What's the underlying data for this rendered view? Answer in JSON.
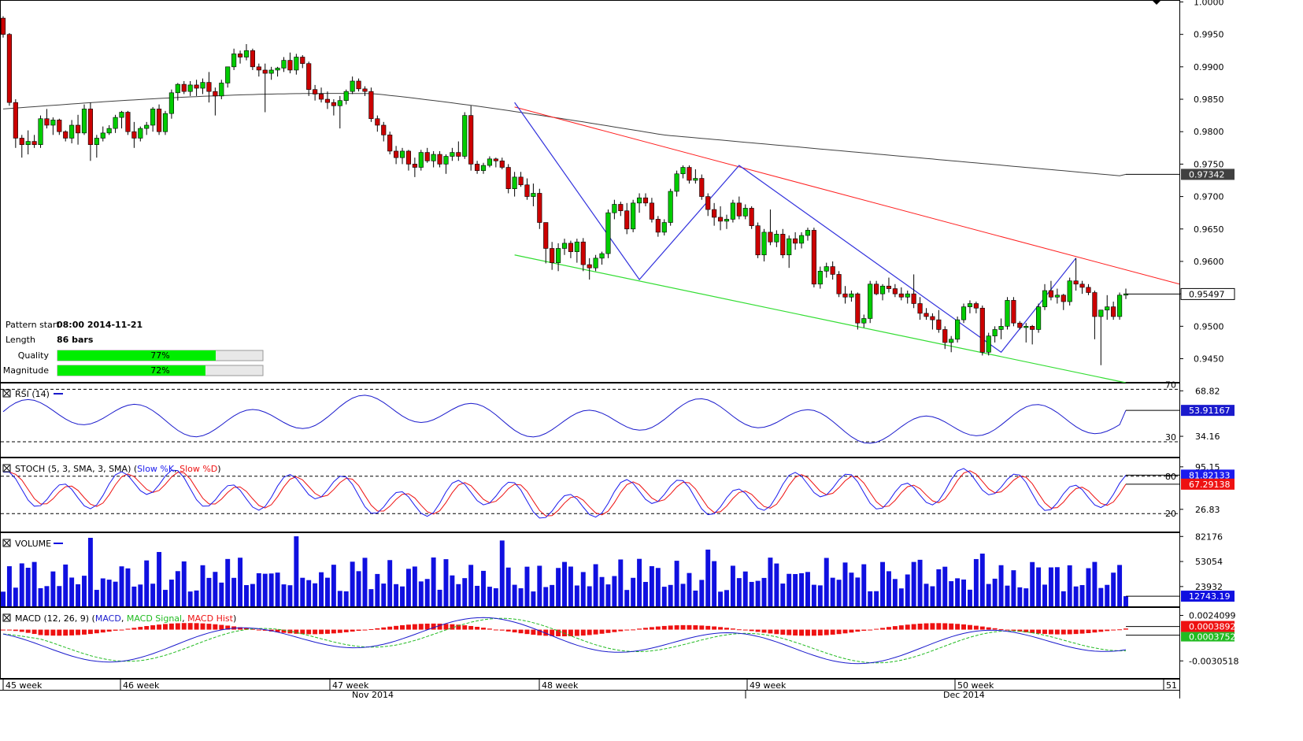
{
  "chart_data": {
    "type": "candlestick-pattern",
    "main": {
      "yticks": [
        1.0,
        0.995,
        0.99,
        0.985,
        0.98,
        0.975,
        0.97,
        0.965,
        0.96,
        0.955,
        0.95,
        0.945
      ],
      "ytick_labels": [
        "1.0000",
        "0.9950",
        "0.9900",
        "0.9850",
        "0.9800",
        "0.9750",
        "0.9700",
        "0.9650",
        "0.9600",
        "0.9550",
        "0.9500",
        "0.9450"
      ],
      "ylim": [
        0.9413,
        1.0003
      ],
      "ma_label": "0.97342",
      "last_price_label": "0.95497",
      "ma_value": 0.97342,
      "last_price": 0.95497,
      "candles_ohlc": [
        [
          0.9975,
          0.9978,
          0.9945,
          0.995
        ],
        [
          0.995,
          0.9952,
          0.984,
          0.9845
        ],
        [
          0.9845,
          0.985,
          0.9775,
          0.979
        ],
        [
          0.979,
          0.9795,
          0.976,
          0.978
        ],
        [
          0.978,
          0.9802,
          0.9765,
          0.9785
        ],
        [
          0.9785,
          0.9795,
          0.9775,
          0.978
        ],
        [
          0.978,
          0.9825,
          0.9775,
          0.982
        ],
        [
          0.982,
          0.9835,
          0.9805,
          0.981
        ],
        [
          0.981,
          0.9822,
          0.9795,
          0.9818
        ],
        [
          0.9818,
          0.982,
          0.9795,
          0.98
        ],
        [
          0.98,
          0.9802,
          0.9785,
          0.979
        ],
        [
          0.979,
          0.9818,
          0.9782,
          0.981
        ],
        [
          0.981,
          0.9826,
          0.978,
          0.9798
        ],
        [
          0.9798,
          0.9842,
          0.9795,
          0.9835
        ],
        [
          0.9835,
          0.9845,
          0.9755,
          0.978
        ],
        [
          0.978,
          0.9795,
          0.976,
          0.979
        ],
        [
          0.979,
          0.9808,
          0.9785,
          0.9798
        ],
        [
          0.9798,
          0.981,
          0.9795,
          0.9805
        ],
        [
          0.9805,
          0.9826,
          0.9798,
          0.9822
        ],
        [
          0.9822,
          0.9832,
          0.9805,
          0.983
        ],
        [
          0.983,
          0.9832,
          0.9795,
          0.98
        ],
        [
          0.98,
          0.9815,
          0.9775,
          0.979
        ],
        [
          0.979,
          0.9808,
          0.9785,
          0.9805
        ],
        [
          0.9805,
          0.9815,
          0.9795,
          0.981
        ],
        [
          0.981,
          0.9838,
          0.98,
          0.9835
        ],
        [
          0.9835,
          0.9842,
          0.9795,
          0.98
        ],
        [
          0.98,
          0.9832,
          0.9795,
          0.9828
        ],
        [
          0.9828,
          0.9865,
          0.982,
          0.986
        ],
        [
          0.986,
          0.9875,
          0.9848,
          0.9873
        ],
        [
          0.9873,
          0.9878,
          0.9858,
          0.9862
        ],
        [
          0.9862,
          0.9878,
          0.9855,
          0.9872
        ],
        [
          0.9872,
          0.988,
          0.9855,
          0.9867
        ],
        [
          0.9867,
          0.9882,
          0.9858,
          0.9876
        ],
        [
          0.9876,
          0.9892,
          0.9845,
          0.9862
        ],
        [
          0.9862,
          0.9868,
          0.9825,
          0.9855
        ],
        [
          0.9855,
          0.988,
          0.985,
          0.9875
        ],
        [
          0.9875,
          0.99,
          0.9868,
          0.99
        ],
        [
          0.99,
          0.9928,
          0.9895,
          0.992
        ],
        [
          0.992,
          0.9925,
          0.9905,
          0.9915
        ],
        [
          0.9915,
          0.9935,
          0.991,
          0.9925
        ],
        [
          0.9925,
          0.9928,
          0.9895,
          0.99
        ],
        [
          0.99,
          0.9905,
          0.9885,
          0.9895
        ],
        [
          0.9895,
          0.9905,
          0.983,
          0.989
        ],
        [
          0.989,
          0.99,
          0.988,
          0.9895
        ],
        [
          0.9895,
          0.99,
          0.9885,
          0.9898
        ],
        [
          0.9898,
          0.9915,
          0.9892,
          0.991
        ],
        [
          0.991,
          0.9922,
          0.989,
          0.9895
        ],
        [
          0.9895,
          0.992,
          0.9888,
          0.9915
        ],
        [
          0.9915,
          0.9918,
          0.9898,
          0.9905
        ],
        [
          0.9905,
          0.9908,
          0.9855,
          0.9865
        ],
        [
          0.9865,
          0.9872,
          0.9848,
          0.9858
        ],
        [
          0.9858,
          0.9868,
          0.9845,
          0.985
        ],
        [
          0.985,
          0.9862,
          0.9835,
          0.9845
        ],
        [
          0.9845,
          0.985,
          0.9825,
          0.984
        ],
        [
          0.984,
          0.9855,
          0.9805,
          0.9848
        ],
        [
          0.9848,
          0.9865,
          0.9842,
          0.9862
        ],
        [
          0.9862,
          0.9885,
          0.9858,
          0.9878
        ],
        [
          0.9878,
          0.9882,
          0.9862,
          0.9866
        ],
        [
          0.9866,
          0.987,
          0.9855,
          0.9862
        ],
        [
          0.9862,
          0.9868,
          0.9815,
          0.982
        ],
        [
          0.982,
          0.9825,
          0.98,
          0.981
        ],
        [
          0.981,
          0.9815,
          0.9785,
          0.9795
        ],
        [
          0.9795,
          0.98,
          0.9765,
          0.977
        ],
        [
          0.977,
          0.9778,
          0.975,
          0.976
        ],
        [
          0.976,
          0.9775,
          0.975,
          0.977
        ],
        [
          0.977,
          0.9772,
          0.974,
          0.975
        ],
        [
          0.975,
          0.976,
          0.973,
          0.9745
        ],
        [
          0.9745,
          0.9772,
          0.974,
          0.9768
        ],
        [
          0.9768,
          0.9775,
          0.9752,
          0.9755
        ],
        [
          0.9755,
          0.977,
          0.9745,
          0.9765
        ],
        [
          0.9765,
          0.977,
          0.9745,
          0.975
        ],
        [
          0.975,
          0.9765,
          0.9735,
          0.9762
        ],
        [
          0.9762,
          0.9775,
          0.9755,
          0.9768
        ],
        [
          0.9768,
          0.9785,
          0.9755,
          0.9762
        ],
        [
          0.9762,
          0.983,
          0.9758,
          0.9825
        ],
        [
          0.9825,
          0.984,
          0.974,
          0.975
        ],
        [
          0.975,
          0.9755,
          0.9735,
          0.974
        ],
        [
          0.974,
          0.9752,
          0.9735,
          0.9748
        ],
        [
          0.9748,
          0.9762,
          0.9745,
          0.9758
        ],
        [
          0.9758,
          0.976,
          0.9745,
          0.9755
        ],
        [
          0.9755,
          0.976,
          0.9742,
          0.9745
        ],
        [
          0.9745,
          0.975,
          0.9705,
          0.9712
        ],
        [
          0.9712,
          0.9738,
          0.97,
          0.973
        ],
        [
          0.973,
          0.9738,
          0.9715,
          0.9718
        ],
        [
          0.9718,
          0.9728,
          0.9695,
          0.97
        ],
        [
          0.97,
          0.972,
          0.9685,
          0.9705
        ],
        [
          0.9705,
          0.9712,
          0.965,
          0.966
        ],
        [
          0.966,
          0.966,
          0.9597,
          0.962
        ],
        [
          0.962,
          0.963,
          0.9587,
          0.9598
        ],
        [
          0.9598,
          0.9628,
          0.9585,
          0.962
        ],
        [
          0.962,
          0.9635,
          0.961,
          0.9628
        ],
        [
          0.9628,
          0.9632,
          0.9605,
          0.9615
        ],
        [
          0.9615,
          0.9635,
          0.9598,
          0.963
        ],
        [
          0.963,
          0.9636,
          0.9585,
          0.9595
        ],
        [
          0.9595,
          0.9605,
          0.9572,
          0.959
        ],
        [
          0.959,
          0.961,
          0.9585,
          0.9605
        ],
        [
          0.9605,
          0.9615,
          0.9595,
          0.9612
        ],
        [
          0.9612,
          0.968,
          0.9605,
          0.9675
        ],
        [
          0.9675,
          0.9695,
          0.9665,
          0.9688
        ],
        [
          0.9688,
          0.9692,
          0.967,
          0.9678
        ],
        [
          0.9678,
          0.969,
          0.9642,
          0.965
        ],
        [
          0.965,
          0.9695,
          0.9645,
          0.969
        ],
        [
          0.969,
          0.9705,
          0.9675,
          0.9698
        ],
        [
          0.9698,
          0.9705,
          0.9685,
          0.969
        ],
        [
          0.969,
          0.9698,
          0.966,
          0.9665
        ],
        [
          0.9665,
          0.967,
          0.9638,
          0.9645
        ],
        [
          0.9645,
          0.9665,
          0.964,
          0.966
        ],
        [
          0.966,
          0.9712,
          0.9655,
          0.9708
        ],
        [
          0.9708,
          0.974,
          0.97,
          0.9735
        ],
        [
          0.9735,
          0.9748,
          0.9728,
          0.9745
        ],
        [
          0.9745,
          0.9748,
          0.972,
          0.9725
        ],
        [
          0.9725,
          0.9742,
          0.972,
          0.9728
        ],
        [
          0.9728,
          0.9734,
          0.9695,
          0.97
        ],
        [
          0.97,
          0.9705,
          0.967,
          0.968
        ],
        [
          0.968,
          0.969,
          0.9655,
          0.9668
        ],
        [
          0.9668,
          0.9685,
          0.9648,
          0.9662
        ],
        [
          0.9662,
          0.9672,
          0.965,
          0.9665
        ],
        [
          0.9665,
          0.9695,
          0.966,
          0.969
        ],
        [
          0.969,
          0.97,
          0.9665,
          0.967
        ],
        [
          0.967,
          0.9688,
          0.9665,
          0.9682
        ],
        [
          0.9682,
          0.9685,
          0.965,
          0.9655
        ],
        [
          0.9655,
          0.966,
          0.9605,
          0.961
        ],
        [
          0.961,
          0.965,
          0.96,
          0.9645
        ],
        [
          0.9645,
          0.968,
          0.9625,
          0.963
        ],
        [
          0.963,
          0.9648,
          0.9622,
          0.9642
        ],
        [
          0.9642,
          0.965,
          0.9605,
          0.961
        ],
        [
          0.961,
          0.964,
          0.959,
          0.9635
        ],
        [
          0.9635,
          0.9645,
          0.9618,
          0.9628
        ],
        [
          0.9628,
          0.9645,
          0.962,
          0.964
        ],
        [
          0.964,
          0.9652,
          0.9632,
          0.9648
        ],
        [
          0.9648,
          0.9652,
          0.956,
          0.9565
        ],
        [
          0.9565,
          0.9592,
          0.9558,
          0.9585
        ],
        [
          0.9585,
          0.9598,
          0.9575,
          0.9592
        ],
        [
          0.9592,
          0.96,
          0.9572,
          0.958
        ],
        [
          0.958,
          0.9585,
          0.9545,
          0.955
        ],
        [
          0.955,
          0.9562,
          0.9535,
          0.9545
        ],
        [
          0.9545,
          0.9555,
          0.9538,
          0.955
        ],
        [
          0.955,
          0.9552,
          0.9495,
          0.9505
        ],
        [
          0.9505,
          0.9518,
          0.9498,
          0.9512
        ],
        [
          0.9512,
          0.957,
          0.9505,
          0.9565
        ],
        [
          0.9565,
          0.957,
          0.9548,
          0.955
        ],
        [
          0.955,
          0.9565,
          0.954,
          0.9562
        ],
        [
          0.9562,
          0.9575,
          0.9552,
          0.9558
        ],
        [
          0.9558,
          0.9565,
          0.9545,
          0.955
        ],
        [
          0.955,
          0.956,
          0.954,
          0.9545
        ],
        [
          0.9545,
          0.9555,
          0.9535,
          0.955
        ],
        [
          0.955,
          0.958,
          0.9528,
          0.9535
        ],
        [
          0.9535,
          0.9545,
          0.951,
          0.952
        ],
        [
          0.952,
          0.9528,
          0.951,
          0.9515
        ],
        [
          0.9515,
          0.952,
          0.9495,
          0.951
        ],
        [
          0.951,
          0.9525,
          0.949,
          0.9495
        ],
        [
          0.9495,
          0.95,
          0.9465,
          0.9475
        ],
        [
          0.9475,
          0.9485,
          0.946,
          0.948
        ],
        [
          0.948,
          0.9515,
          0.9475,
          0.951
        ],
        [
          0.951,
          0.9535,
          0.9505,
          0.953
        ],
        [
          0.953,
          0.954,
          0.952,
          0.9535
        ],
        [
          0.9535,
          0.9538,
          0.952,
          0.9528
        ],
        [
          0.9528,
          0.9532,
          0.9455,
          0.946
        ],
        [
          0.946,
          0.949,
          0.9455,
          0.9485
        ],
        [
          0.9485,
          0.95,
          0.9475,
          0.9495
        ],
        [
          0.9495,
          0.9512,
          0.948,
          0.95
        ],
        [
          0.95,
          0.9545,
          0.9495,
          0.954
        ],
        [
          0.954,
          0.9545,
          0.95,
          0.9505
        ],
        [
          0.9505,
          0.9508,
          0.9495,
          0.9498
        ],
        [
          0.9498,
          0.9505,
          0.9475,
          0.95
        ],
        [
          0.95,
          0.9502,
          0.9472,
          0.9495
        ],
        [
          0.9495,
          0.9535,
          0.949,
          0.953
        ],
        [
          0.953,
          0.9565,
          0.9525,
          0.9555
        ],
        [
          0.9555,
          0.957,
          0.954,
          0.9545
        ],
        [
          0.9545,
          0.9558,
          0.9535,
          0.9548
        ],
        [
          0.9548,
          0.955,
          0.9525,
          0.9538
        ],
        [
          0.9538,
          0.9575,
          0.9532,
          0.957
        ],
        [
          0.957,
          0.9605,
          0.9555,
          0.9565
        ],
        [
          0.9565,
          0.957,
          0.955,
          0.956
        ],
        [
          0.956,
          0.9565,
          0.9548,
          0.9552
        ],
        [
          0.9552,
          0.9555,
          0.948,
          0.9515
        ],
        [
          0.9515,
          0.9525,
          0.944,
          0.9525
        ],
        [
          0.9525,
          0.9548,
          0.951,
          0.953
        ],
        [
          0.953,
          0.9538,
          0.951,
          0.9515
        ],
        [
          0.9515,
          0.9552,
          0.951,
          0.9548
        ],
        [
          0.9548,
          0.9558,
          0.9542,
          0.955
        ]
      ]
    },
    "pattern_info": [
      {
        "label": "Pattern start",
        "value": "08:00 2014-11-21"
      },
      {
        "label": "Length",
        "value": "86 bars"
      }
    ],
    "quality": {
      "label": "Quality",
      "value": 77,
      "text": "77%"
    },
    "magnitude": {
      "label": "Magnitude",
      "value": 72,
      "text": "72%"
    },
    "rsi": {
      "title": "RSI (14)",
      "ylim": [
        18,
        75
      ],
      "level_high": 70,
      "level_low": 30,
      "high_label": "70",
      "low_label": "30",
      "ytick_labels": [
        "68.82",
        "34.16"
      ],
      "yticks": [
        68.82,
        34.16
      ],
      "current_label": "53.91167",
      "current": 53.91167
    },
    "stoch": {
      "title": "STOCH (5, 3, SMA, 3, SMA)",
      "k_name": "Slow %K",
      "d_name": "Slow %D",
      "ylim": [
        0,
        100
      ],
      "level_high": 80,
      "level_low": 20,
      "high_label": "80",
      "low_label": "20",
      "ytick_labels": [
        "95.15",
        "26.83"
      ],
      "yticks": [
        95.15,
        26.83
      ],
      "k_current_label": "81.82133",
      "d_current_label": "67.29138",
      "k_current": 81.82133,
      "d_current": 67.29138
    },
    "volume": {
      "title": "VOLUME",
      "ytick_labels": [
        "82176",
        "53054",
        "23932"
      ],
      "yticks": [
        82176,
        53054,
        23932
      ],
      "current_label": "12743.19",
      "current": 12743.19,
      "ylim": [
        0,
        87000
      ]
    },
    "macd": {
      "title": "MACD (12, 26, 9)",
      "macd_name": "MACD",
      "signal_name": "MACD Signal",
      "hist_name": "MACD Hist",
      "ytick_labels": [
        "0.0024099",
        "-0.0030518"
      ],
      "yticks": [
        0.0024099,
        -0.0030518
      ],
      "hist_label": "0.0003892",
      "macd_label": "0.0003752",
      "ylim": [
        -0.0052,
        0.0034
      ]
    },
    "x_axis": {
      "week_labels": [
        "45 week",
        "46 week",
        "47 week",
        "48 week",
        "49 week",
        "50 week",
        "51"
      ],
      "month_labels": [
        "Nov 2014",
        "Dec 2014"
      ]
    },
    "colors": {
      "bull": "#00cc00",
      "bear": "#cc0000",
      "ma": "#404040",
      "channel_upper": "#ff2020",
      "channel_lower": "#33dd33",
      "zigzag": "#3333dd",
      "rsi": "#1a1acc",
      "stoch_k": "#1a1aee",
      "stoch_d": "#ee1111",
      "volume": "#1010e0",
      "macd": "#1a1acc",
      "signal": "#22bb22",
      "hist": "#ee1111",
      "progress": "#00ee00"
    }
  }
}
